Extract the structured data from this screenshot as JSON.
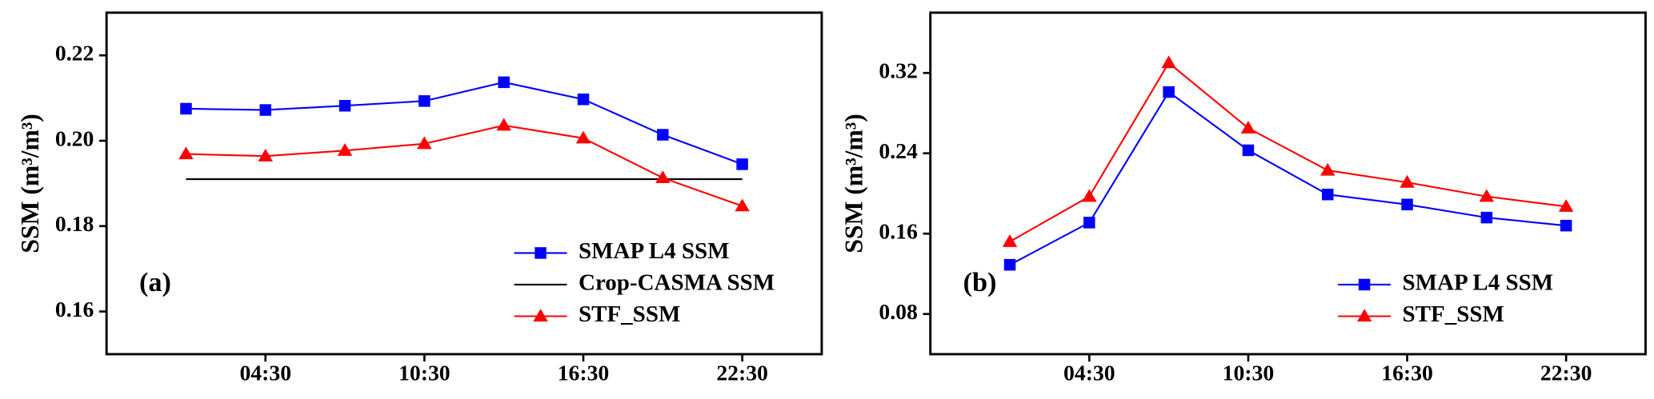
{
  "chart_data": [
    {
      "type": "line",
      "annotation": "(a)",
      "y_label": "SSM (m³/m³)",
      "categories": [
        null,
        "04:30",
        null,
        "10:30",
        null,
        "16:30",
        null,
        "22:30"
      ],
      "ylim": [
        0.15,
        0.23
      ],
      "yticks": [
        0.16,
        0.18,
        {
          "value": 0.2,
          "label": "0.20"
        },
        0.22
      ],
      "legend": "lower right",
      "series": [
        {
          "name": "SMAP L4 SSM",
          "color": "#0000ff",
          "marker": "square",
          "values": [
            0.2075,
            0.2072,
            0.2082,
            0.2093,
            0.2137,
            0.2097,
            0.2014,
            0.1945
          ]
        },
        {
          "name": "Crop-CASMA SSM",
          "color": "#000000",
          "marker": "none",
          "values": [
            0.191,
            0.191,
            0.191,
            0.191,
            0.191,
            0.191,
            0.191,
            0.191
          ]
        },
        {
          "name": "STF_SSM",
          "color": "#ff0000",
          "marker": "triangle",
          "values": [
            0.1969,
            0.1964,
            0.1977,
            0.1993,
            0.2036,
            0.2006,
            0.1913,
            0.1847
          ]
        }
      ]
    },
    {
      "type": "line",
      "annotation": "(b)",
      "y_label": "SSM (m³/m³)",
      "categories": [
        null,
        "04:30",
        null,
        "10:30",
        null,
        "16:30",
        null,
        "22:30"
      ],
      "ylim": [
        0.04,
        0.38
      ],
      "yticks": [
        0.08,
        0.16,
        0.24,
        0.32
      ],
      "legend": "lower right",
      "series": [
        {
          "name": "SMAP L4 SSM",
          "color": "#0000ff",
          "marker": "square",
          "values": [
            0.129,
            0.171,
            0.301,
            0.243,
            0.199,
            0.189,
            0.176,
            0.168
          ]
        },
        {
          "name": "STF_SSM",
          "color": "#ff0000",
          "marker": "triangle",
          "values": [
            0.152,
            0.197,
            0.33,
            0.265,
            0.223,
            0.211,
            0.197,
            0.187
          ]
        }
      ]
    }
  ]
}
